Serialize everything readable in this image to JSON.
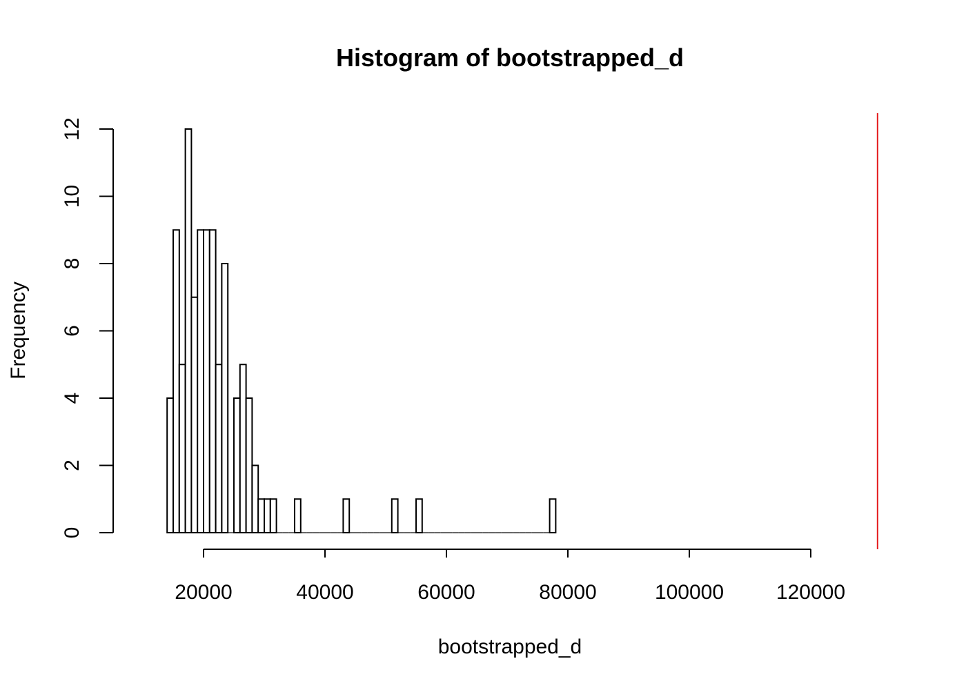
{
  "chart_data": {
    "type": "bar",
    "title": "Histogram of bootstrapped_d",
    "xlabel": "bootstrapped_d",
    "ylabel": "Frequency",
    "xlim": [
      20000,
      120000
    ],
    "ylim": [
      0,
      12
    ],
    "x_ticks": [
      "20000",
      "40000",
      "60000",
      "80000",
      "100000",
      "120000"
    ],
    "x_tick_values": [
      20000,
      40000,
      60000,
      80000,
      100000,
      120000
    ],
    "y_ticks": [
      "0",
      "2",
      "4",
      "6",
      "8",
      "10",
      "12"
    ],
    "y_tick_values": [
      0,
      2,
      4,
      6,
      8,
      10,
      12
    ],
    "bin_start": 14000,
    "bin_width": 1000,
    "counts": [
      4,
      9,
      5,
      12,
      7,
      9,
      9,
      9,
      5,
      8,
      0,
      4,
      5,
      4,
      2,
      1,
      1,
      1,
      0,
      0,
      0,
      1,
      0,
      0,
      0,
      0,
      0,
      0,
      0,
      1,
      0,
      0,
      0,
      0,
      0,
      0,
      0,
      1,
      0,
      0,
      0,
      1,
      0,
      0,
      0,
      0,
      0,
      0,
      0,
      0,
      0,
      0,
      0,
      0,
      0,
      0,
      0,
      0,
      0,
      0,
      0,
      0,
      0,
      1
    ],
    "reference_line": {
      "x": 131000,
      "color": "#e41a1c"
    },
    "grid": false
  }
}
